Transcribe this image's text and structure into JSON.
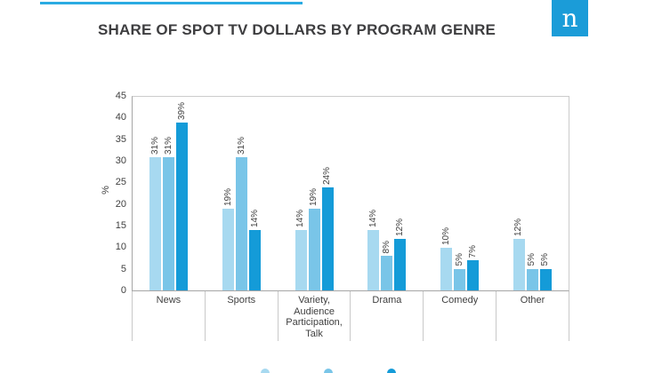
{
  "header": {
    "title": "SHARE OF SPOT TV DOLLARS BY PROGRAM GENRE",
    "logo_text": "n"
  },
  "colors": {
    "accent_line": "#2aabe2",
    "logo_bg": "#1b9cd8",
    "title_text": "#3e3e40",
    "axis_text": "#3f3f3f",
    "axis_line": "#c9c9c9"
  },
  "chart_data": {
    "type": "bar",
    "title": "SHARE OF SPOT TV DOLLARS BY PROGRAM GENRE",
    "xlabel": "",
    "ylabel": "%",
    "ylim": [
      0,
      45
    ],
    "ytick_step": 5,
    "grid": false,
    "value_label_format": "{v}%",
    "legend_position": "bottom (labels cut off by screenshot edge)",
    "categories": [
      "News",
      "Sports",
      "Variety, Audience Participation, Talk",
      "Drama",
      "Comedy",
      "Other"
    ],
    "series": [
      {
        "name": "series-1-light-blue",
        "color": "#a7d9f0",
        "values": [
          31,
          19,
          14,
          14,
          10,
          12
        ]
      },
      {
        "name": "series-2-medium-blue",
        "color": "#79c5e8",
        "values": [
          31,
          31,
          19,
          8,
          5,
          5
        ]
      },
      {
        "name": "series-3-dark-blue",
        "color": "#149bd8",
        "values": [
          39,
          14,
          24,
          12,
          7,
          5
        ]
      }
    ]
  },
  "legend": {
    "items": [
      {
        "color": "#a7d9f0",
        "label": ""
      },
      {
        "color": "#79c5e8",
        "label": ""
      },
      {
        "color": "#149bd8",
        "label": ""
      }
    ]
  }
}
